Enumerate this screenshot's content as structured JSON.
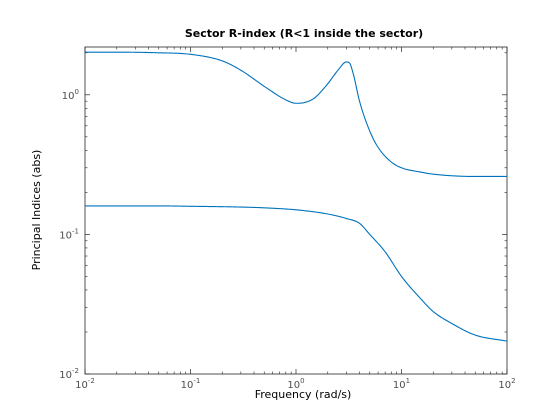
{
  "chart_data": {
    "type": "line",
    "title": "Sector R-index (R<1 inside the sector)",
    "xlabel": "Frequency (rad/s)",
    "ylabel": "Principal Indices (abs)",
    "xscale": "log",
    "yscale": "log",
    "xlim": [
      0.01,
      100
    ],
    "ylim": [
      0.01,
      2.2
    ],
    "grid": false,
    "legend": "none",
    "x_ticks": [
      {
        "base": "10",
        "exp": "-2",
        "value": 0.01
      },
      {
        "base": "10",
        "exp": "-1",
        "value": 0.1
      },
      {
        "base": "10",
        "exp": "0",
        "value": 1
      },
      {
        "base": "10",
        "exp": "1",
        "value": 10
      },
      {
        "base": "10",
        "exp": "2",
        "value": 100
      }
    ],
    "y_ticks": [
      {
        "base": "10",
        "exp": "-2",
        "value": 0.01
      },
      {
        "base": "10",
        "exp": "-1",
        "value": 0.1
      },
      {
        "base": "10",
        "exp": "0",
        "value": 1
      }
    ],
    "series": [
      {
        "color": "#0072bd",
        "x": [
          0.01,
          0.02,
          0.05,
          0.1,
          0.2,
          0.3,
          0.5,
          0.8,
          1.0,
          1.2,
          1.5,
          2.0,
          2.5,
          3.0,
          3.2,
          3.5,
          4.0,
          5.0,
          6.0,
          8.0,
          10.0,
          15.0,
          20.0,
          50.0,
          100.0
        ],
        "y": [
          2.02,
          2.02,
          2.0,
          1.95,
          1.75,
          1.5,
          1.15,
          0.92,
          0.87,
          0.88,
          0.95,
          1.2,
          1.5,
          1.72,
          1.7,
          1.4,
          0.9,
          0.55,
          0.42,
          0.33,
          0.3,
          0.28,
          0.27,
          0.26,
          0.26
        ]
      },
      {
        "color": "#0072bd",
        "x": [
          0.01,
          0.05,
          0.1,
          0.3,
          0.5,
          1.0,
          2.0,
          3.0,
          4.0,
          5.0,
          7.0,
          10.0,
          15.0,
          20.0,
          30.0,
          50.0,
          100.0
        ],
        "y": [
          0.16,
          0.16,
          0.159,
          0.157,
          0.155,
          0.15,
          0.14,
          0.13,
          0.12,
          0.1,
          0.075,
          0.05,
          0.035,
          0.028,
          0.023,
          0.019,
          0.0172
        ]
      }
    ]
  }
}
